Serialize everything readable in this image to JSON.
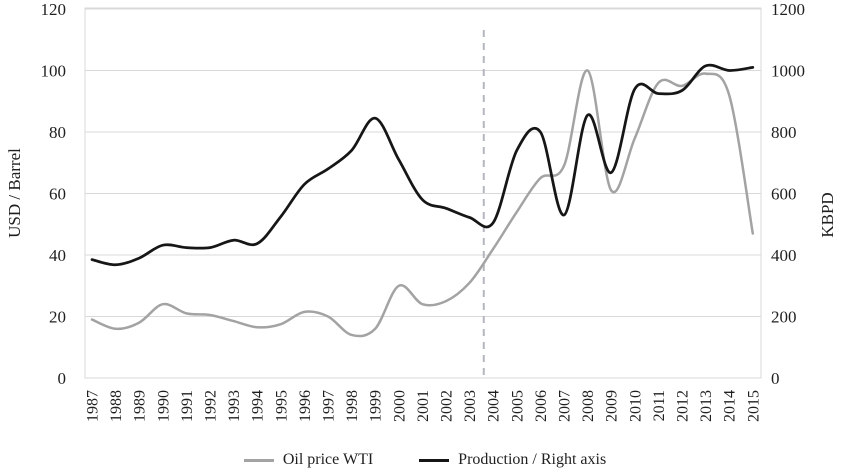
{
  "chart_data": {
    "type": "line",
    "title": "",
    "x": [
      1987,
      1988,
      1989,
      1990,
      1991,
      1992,
      1993,
      1994,
      1995,
      1996,
      1997,
      1998,
      1999,
      2000,
      2001,
      2002,
      2003,
      2004,
      2005,
      2006,
      2007,
      2008,
      2009,
      2010,
      2011,
      2012,
      2013,
      2014,
      2015
    ],
    "series": [
      {
        "name": "Oil price WTI",
        "axis": "left",
        "color": "#a3a3a3",
        "stroke_width": 2.5,
        "values": [
          19,
          16,
          18,
          24,
          21,
          20.5,
          18.5,
          16.5,
          17.5,
          21.5,
          20,
          14,
          16,
          30,
          24,
          25,
          31,
          42,
          54,
          65,
          69,
          100,
          61,
          78,
          96,
          95,
          99,
          92,
          47
        ]
      },
      {
        "name": "Production / Right axis",
        "axis": "right",
        "color": "#161616",
        "stroke_width": 2.75,
        "values": [
          385,
          368,
          390,
          432,
          424,
          424,
          448,
          437,
          525,
          630,
          680,
          740,
          845,
          710,
          580,
          552,
          522,
          505,
          740,
          800,
          530,
          855,
          668,
          940,
          925,
          935,
          1015,
          1000,
          1010
        ]
      }
    ],
    "left_axis": {
      "title": "USD / Barrel",
      "min": 0,
      "max": 120,
      "step": 20,
      "ticks": [
        "0",
        "20",
        "40",
        "60",
        "80",
        "100",
        "120"
      ]
    },
    "right_axis": {
      "title": "KBPD",
      "min": 0,
      "max": 1200,
      "step": 200,
      "ticks": [
        "0",
        "200",
        "400",
        "600",
        "800",
        "1000",
        "1200"
      ]
    },
    "marker_line": {
      "position_year": 2003.6,
      "style": "dashed",
      "color": "#b3b6bd"
    },
    "grid": true,
    "legend_position": "bottom",
    "colors": {
      "gridline": "#d9d9d9",
      "plot_border": "#d9d9d9",
      "text": "#1f1f1f",
      "background": "#ffffff"
    },
    "smoothing": true
  }
}
